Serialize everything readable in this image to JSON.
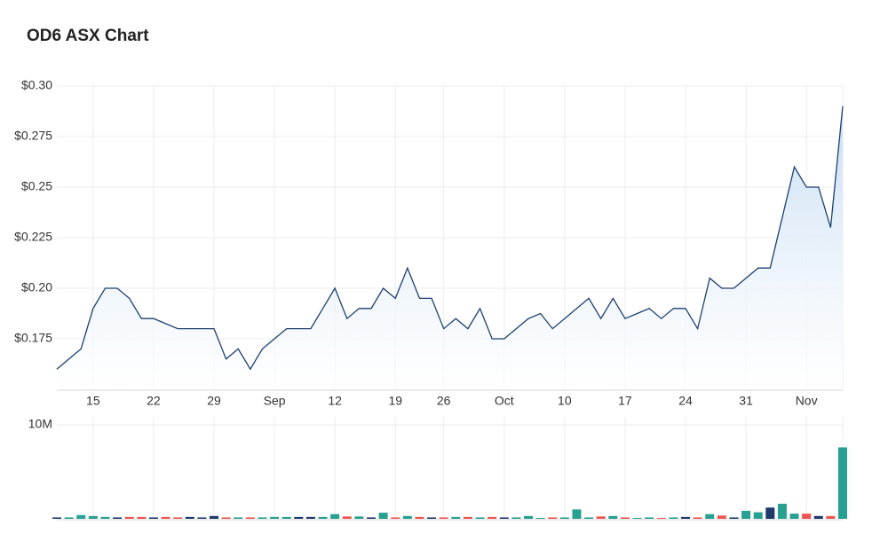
{
  "chart_data": [
    {
      "type": "area",
      "title": "OD6 ASX Chart",
      "categories": [
        null,
        null,
        null,
        "15",
        null,
        null,
        null,
        null,
        "22",
        null,
        null,
        null,
        null,
        "29",
        null,
        null,
        null,
        null,
        "Sep",
        null,
        null,
        null,
        null,
        "12",
        null,
        null,
        null,
        null,
        "19",
        null,
        null,
        null,
        "26",
        null,
        null,
        null,
        null,
        "Oct",
        null,
        null,
        null,
        null,
        "10",
        null,
        null,
        null,
        null,
        "17",
        null,
        null,
        null,
        null,
        "24",
        null,
        null,
        null,
        null,
        "31",
        null,
        null,
        null,
        null,
        "Nov",
        null,
        null,
        null
      ],
      "values": [
        0.16,
        0.165,
        0.17,
        0.19,
        0.2,
        0.2,
        0.195,
        0.185,
        0.185,
        0.1825,
        0.18,
        0.18,
        0.18,
        0.18,
        0.165,
        0.17,
        0.16,
        0.17,
        0.175,
        0.18,
        0.18,
        0.18,
        0.19,
        0.2,
        0.185,
        0.19,
        0.19,
        0.2,
        0.195,
        0.21,
        0.195,
        0.195,
        0.18,
        0.185,
        0.18,
        0.19,
        0.175,
        0.175,
        0.18,
        0.185,
        0.1875,
        0.18,
        0.185,
        0.19,
        0.195,
        0.185,
        0.195,
        0.185,
        0.1875,
        0.19,
        0.185,
        0.19,
        0.19,
        0.18,
        0.205,
        0.2,
        0.2,
        0.205,
        0.21,
        0.21,
        0.235,
        0.26,
        0.25,
        0.25,
        0.23,
        0.29
      ],
      "color": "#1d3f6e",
      "fill_color": "#c6ddf3",
      "ylim": [
        0.15,
        0.3
      ],
      "yticks": [
        {
          "value": 0.175,
          "label": "$0.175"
        },
        {
          "value": 0.2,
          "label": "$0.20"
        },
        {
          "value": 0.225,
          "label": "$0.225"
        },
        {
          "value": 0.25,
          "label": "$0.25"
        },
        {
          "value": 0.275,
          "label": "$0.275"
        },
        {
          "value": 0.3,
          "label": "$0.30"
        }
      ],
      "grid": true
    },
    {
      "type": "bar",
      "values": [
        150000,
        150000,
        400000,
        300000,
        200000,
        150000,
        200000,
        200000,
        150000,
        200000,
        150000,
        200000,
        150000,
        300000,
        150000,
        150000,
        150000,
        150000,
        200000,
        200000,
        200000,
        200000,
        200000,
        500000,
        250000,
        250000,
        150000,
        650000,
        150000,
        300000,
        200000,
        150000,
        150000,
        200000,
        200000,
        150000,
        200000,
        150000,
        150000,
        300000,
        100000,
        150000,
        150000,
        1000000,
        150000,
        250000,
        300000,
        150000,
        100000,
        150000,
        100000,
        150000,
        200000,
        150000,
        500000,
        350000,
        150000,
        850000,
        700000,
        1200000,
        1600000,
        550000,
        550000,
        300000,
        300000,
        7600000
      ],
      "up_color": "#26a090",
      "down_color": "#ef5350",
      "flat_color": "#1d3a6b",
      "ylim": [
        0,
        10000000
      ],
      "yticks": [
        {
          "value": 10000000,
          "label": "10M"
        }
      ],
      "grid": true
    }
  ]
}
